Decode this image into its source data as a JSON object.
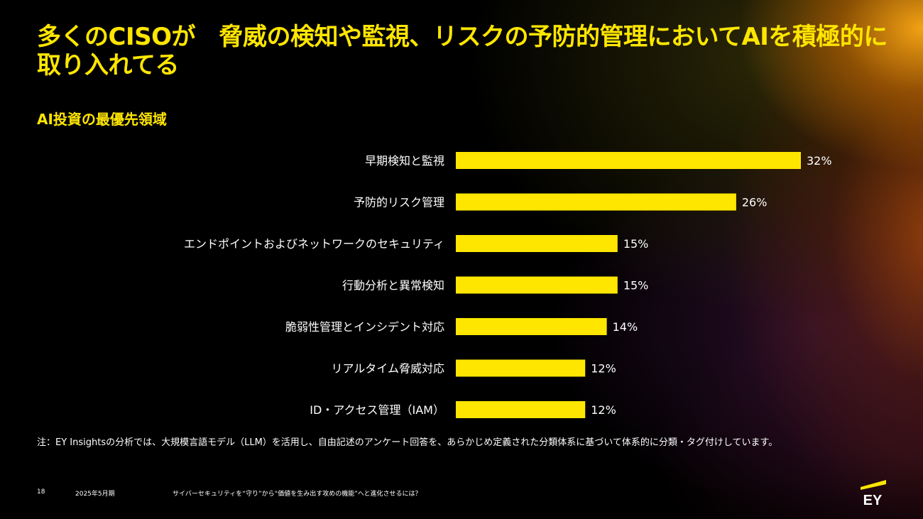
{
  "title": "多くのCISOが　脅威の検知や監視、リスクの予防的管理においてAIを積極的に取り入れてる",
  "subtitle": "AI投資の最優先領域",
  "chart_data": {
    "type": "bar",
    "orientation": "horizontal",
    "categories": [
      "早期検知と監視",
      "予防的リスク管理",
      "エンドポイントおよびネットワークのセキュリティ",
      "行動分析と異常検知",
      "脆弱性管理とインシデント対応",
      "リアルタイム脅威対応",
      "ID・アクセス管理（IAM）"
    ],
    "values": [
      32,
      26,
      15,
      15,
      14,
      12,
      12
    ],
    "value_labels": [
      "32%",
      "26%",
      "15%",
      "15%",
      "14%",
      "12%",
      "12%"
    ],
    "unit": "%",
    "bar_color": "#FFE600",
    "xlim": [
      0,
      32
    ],
    "grid": false
  },
  "note": "注：EY Insightsの分析では、大規模言語モデル（LLM）を活用し、自由記述のアンケート回答を、あらかじめ定義された分類体系に基づいて体系的に分類・タグ付けしています。",
  "footer": {
    "page_number": "18",
    "date": "2025年5月期",
    "doc_title": "サイバーセキュリティを“守り”から“価値を生み出す攻めの機能”へと進化させるには？"
  },
  "logo": {
    "text": "EY",
    "color": "#FFE600"
  }
}
